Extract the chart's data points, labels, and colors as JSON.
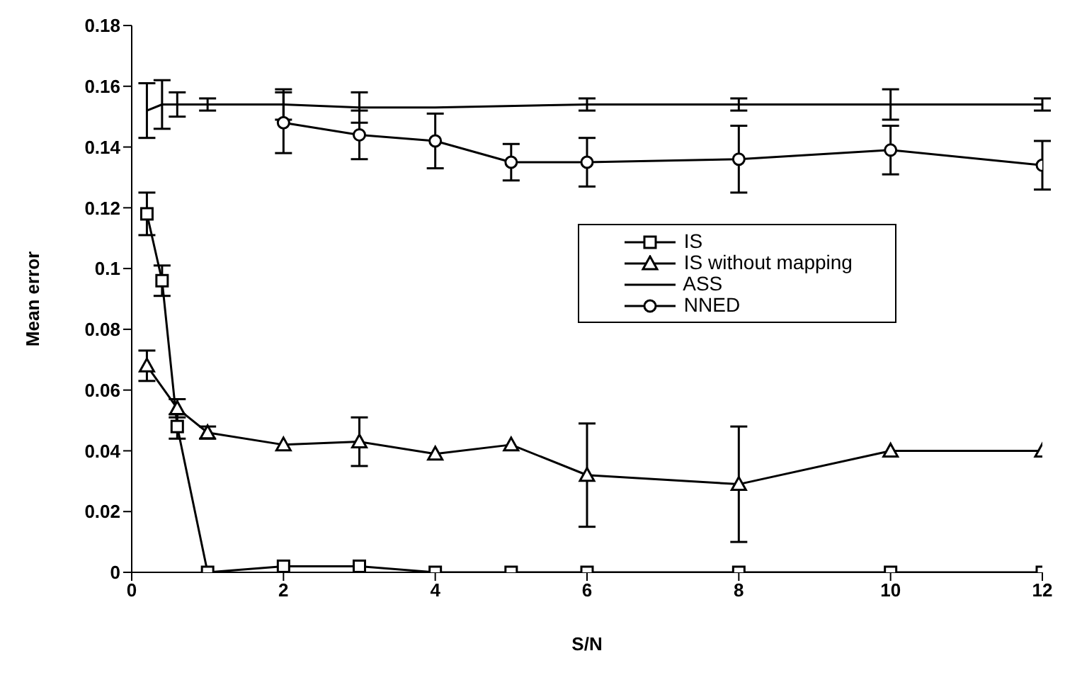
{
  "chart_data": {
    "type": "line",
    "xlabel": "S/N",
    "ylabel": "Mean error",
    "xlim": [
      0,
      12
    ],
    "xticks": [
      0,
      2,
      4,
      6,
      8,
      10,
      12
    ],
    "ylim": [
      0,
      0.18
    ],
    "yticks": [
      0,
      0.02,
      0.04,
      0.06,
      0.08,
      0.1,
      0.12,
      0.14,
      0.16,
      0.18
    ],
    "legend": "right",
    "series": [
      {
        "name": "IS",
        "color": "#000000",
        "marker": "square",
        "x": [
          0.2,
          0.4,
          0.6,
          1,
          2,
          3,
          4,
          5,
          6,
          8,
          10,
          12
        ],
        "values": [
          0.118,
          0.096,
          0.048,
          0,
          0.002,
          0.002,
          0,
          0,
          0,
          0,
          0,
          0
        ],
        "errors": [
          0.007,
          0.005,
          0.004,
          null,
          null,
          null,
          null,
          null,
          null,
          null,
          null,
          null
        ]
      },
      {
        "name": "IS without mapping",
        "color": "#000000",
        "marker": "triangle",
        "x": [
          0.2,
          0.6,
          1,
          2,
          3,
          4,
          5,
          6,
          8,
          10,
          12
        ],
        "values": [
          0.068,
          0.054,
          0.046,
          0.042,
          0.043,
          0.039,
          0.042,
          0.032,
          0.029,
          0.04,
          0.04
        ],
        "errors": [
          0.005,
          0.003,
          0.002,
          null,
          0.008,
          null,
          null,
          0.017,
          0.019,
          null,
          null
        ]
      },
      {
        "name": "ASS",
        "color": "#000000",
        "marker": "none",
        "x": [
          0.2,
          0.4,
          0.6,
          1,
          2,
          3,
          4,
          6,
          8,
          10,
          12
        ],
        "values": [
          0.152,
          0.154,
          0.154,
          0.154,
          0.154,
          0.153,
          0.153,
          0.154,
          0.154,
          0.154,
          0.154
        ],
        "errors": [
          0.009,
          0.008,
          0.004,
          0.002,
          0.005,
          0.005,
          null,
          0.002,
          0.002,
          0.005,
          0.002
        ]
      },
      {
        "name": "NNED",
        "color": "#000000",
        "marker": "circle",
        "x": [
          2,
          3,
          4,
          5,
          6,
          8,
          10,
          12
        ],
        "values": [
          0.148,
          0.144,
          0.142,
          0.135,
          0.135,
          0.136,
          0.139,
          0.134
        ],
        "errors": [
          0.01,
          0.008,
          0.009,
          0.006,
          0.008,
          0.011,
          0.008,
          0.008
        ]
      }
    ]
  }
}
